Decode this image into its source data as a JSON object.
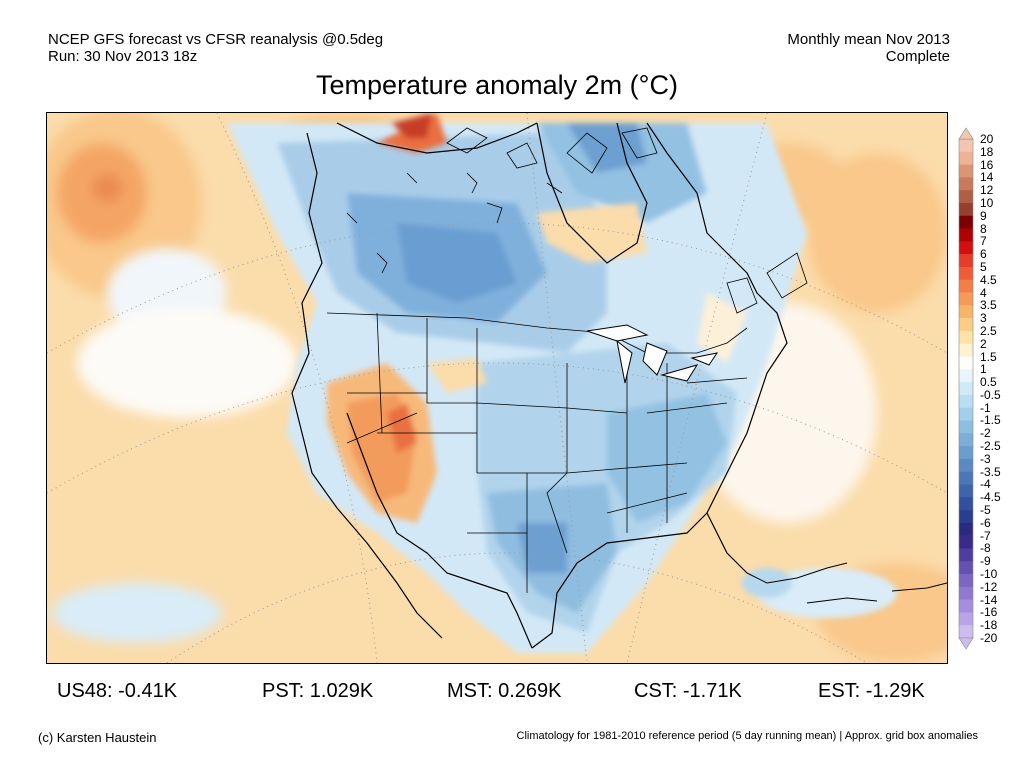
{
  "header": {
    "line1": "NCEP GFS forecast vs CFSR reanalysis @0.5deg",
    "line2": "Run: 30 Nov 2013 18z",
    "right1": "Monthly mean Nov 2013",
    "right2": "Complete"
  },
  "title": "Temperature anomaly 2m (°C)",
  "colorbar": {
    "labels": [
      "20",
      "18",
      "16",
      "14",
      "12",
      "10",
      "9",
      "8",
      "7",
      "6",
      "5",
      "4.5",
      "4",
      "3.5",
      "3",
      "2.5",
      "2",
      "1.5",
      "1",
      "0.5",
      "-0.5",
      "-1",
      "-1.5",
      "-2",
      "-2.5",
      "-3",
      "-3.5",
      "-4",
      "-4.5",
      "-5",
      "-6",
      "-7",
      "-8",
      "-9",
      "-10",
      "-12",
      "-14",
      "-16",
      "-18",
      "-20"
    ],
    "colors": [
      "#f4c5b0",
      "#eeb295",
      "#dd9475",
      "#c97a5c",
      "#b05e45",
      "#973f2d",
      "#7d0000",
      "#b00000",
      "#d31010",
      "#e63c2a",
      "#ef5d38",
      "#f37f48",
      "#f69a58",
      "#f8b56a",
      "#fbcd85",
      "#fde3a8",
      "#fef2d0",
      "#fffdf5",
      "#e9f5fc",
      "#d0eaf7",
      "#b9def1",
      "#a2cfe9",
      "#8ebfe0",
      "#7caed7",
      "#6b9dcd",
      "#5b8ac2",
      "#4c77b6",
      "#3e64a9",
      "#33509c",
      "#2a3e8e",
      "#2a2a80",
      "#3a2b8a",
      "#503da0",
      "#6651b3",
      "#7c65c3",
      "#9179d1",
      "#a58edc",
      "#b9a5e6",
      "#cdbdee"
    ]
  },
  "stats": [
    {
      "label": "US48: -0.41K"
    },
    {
      "label": "PST: 1.029K"
    },
    {
      "label": "MST: 0.269K"
    },
    {
      "label": "CST: -1.71K"
    },
    {
      "label": "EST: -1.29K"
    }
  ],
  "footer": {
    "credit": "(c) Karsten Haustein",
    "note": "Climatology for 1981-2010 reference period (5 day running mean) | Approx. grid box anomalies"
  },
  "map": {
    "region": "North America",
    "palette": {
      "warm1": "#fbdcab",
      "warm2": "#f9c88a",
      "warm3": "#f4a565",
      "warm4": "#e9703f",
      "hot": "#c83c25",
      "cool1": "#d7ecf8",
      "cool2": "#b6d8ee",
      "cool3": "#93c1e2",
      "cool4": "#6d9fd0",
      "cool5": "#4e7fbf"
    }
  }
}
